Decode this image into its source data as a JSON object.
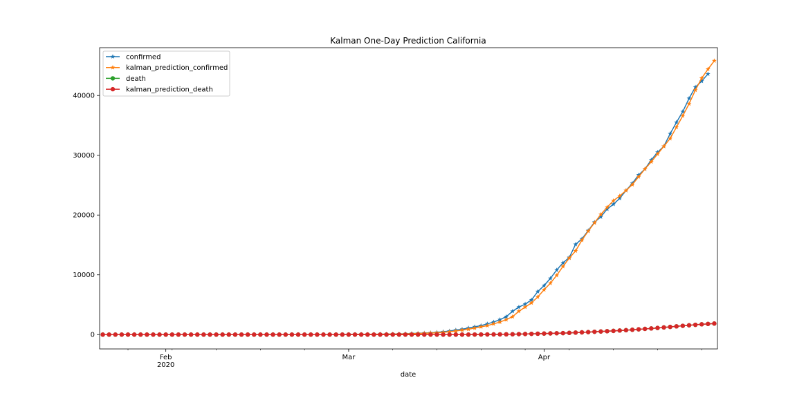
{
  "chart_data": {
    "type": "line",
    "title": "Kalman One-Day Prediction California",
    "xlabel": "date",
    "ylabel": "",
    "x_start": "2020-01-22",
    "x_end": "2020-04-27",
    "ylim": [
      -2400,
      48000
    ],
    "yticks": [
      0,
      10000,
      20000,
      30000,
      40000
    ],
    "xticks_major": [
      {
        "date": "2020-02-01",
        "label": "Feb",
        "sublabel": "2020"
      },
      {
        "date": "2020-03-01",
        "label": "Mar",
        "sublabel": ""
      },
      {
        "date": "2020-04-01",
        "label": "Apr",
        "sublabel": ""
      }
    ],
    "legend_position": "top-left",
    "grid": false,
    "series": [
      {
        "name": "confirmed",
        "color": "#1f77b4",
        "marker": "star",
        "points": [
          [
            "2020-01-22",
            0
          ],
          [
            "2020-02-28",
            0
          ],
          [
            "2020-03-01",
            30
          ],
          [
            "2020-03-05",
            60
          ],
          [
            "2020-03-08",
            90
          ],
          [
            "2020-03-10",
            150
          ],
          [
            "2020-03-12",
            220
          ],
          [
            "2020-03-14",
            300
          ],
          [
            "2020-03-15",
            380
          ],
          [
            "2020-03-16",
            480
          ],
          [
            "2020-03-17",
            600
          ],
          [
            "2020-03-18",
            750
          ],
          [
            "2020-03-19",
            900
          ],
          [
            "2020-03-20",
            1100
          ],
          [
            "2020-03-21",
            1300
          ],
          [
            "2020-03-22",
            1500
          ],
          [
            "2020-03-23",
            1800
          ],
          [
            "2020-03-24",
            2100
          ],
          [
            "2020-03-25",
            2500
          ],
          [
            "2020-03-26",
            3000
          ],
          [
            "2020-03-27",
            3900
          ],
          [
            "2020-03-28",
            4600
          ],
          [
            "2020-03-29",
            5100
          ],
          [
            "2020-03-30",
            5800
          ],
          [
            "2020-03-31",
            7200
          ],
          [
            "2020-04-01",
            8200
          ],
          [
            "2020-04-02",
            9400
          ],
          [
            "2020-04-03",
            10800
          ],
          [
            "2020-04-04",
            12000
          ],
          [
            "2020-04-05",
            12900
          ],
          [
            "2020-04-06",
            15100
          ],
          [
            "2020-04-07",
            16000
          ],
          [
            "2020-04-08",
            17400
          ],
          [
            "2020-04-09",
            18800
          ],
          [
            "2020-04-10",
            19700
          ],
          [
            "2020-04-11",
            21000
          ],
          [
            "2020-04-12",
            21800
          ],
          [
            "2020-04-13",
            22800
          ],
          [
            "2020-04-14",
            24100
          ],
          [
            "2020-04-15",
            25300
          ],
          [
            "2020-04-16",
            26700
          ],
          [
            "2020-04-17",
            27700
          ],
          [
            "2020-04-18",
            29200
          ],
          [
            "2020-04-19",
            30500
          ],
          [
            "2020-04-20",
            31500
          ],
          [
            "2020-04-21",
            33600
          ],
          [
            "2020-04-22",
            35500
          ],
          [
            "2020-04-23",
            37300
          ],
          [
            "2020-04-24",
            39500
          ],
          [
            "2020-04-25",
            41400
          ],
          [
            "2020-04-26",
            42400
          ],
          [
            "2020-04-27",
            43600
          ]
        ]
      },
      {
        "name": "kalman_prediction_confirmed",
        "color": "#ff7f0e",
        "marker": "star",
        "points": [
          [
            "2020-01-22",
            0
          ],
          [
            "2020-02-29",
            0
          ],
          [
            "2020-03-02",
            30
          ],
          [
            "2020-03-06",
            60
          ],
          [
            "2020-03-09",
            90
          ],
          [
            "2020-03-11",
            150
          ],
          [
            "2020-03-13",
            220
          ],
          [
            "2020-03-15",
            300
          ],
          [
            "2020-03-16",
            380
          ],
          [
            "2020-03-17",
            480
          ],
          [
            "2020-03-18",
            600
          ],
          [
            "2020-03-19",
            750
          ],
          [
            "2020-03-20",
            900
          ],
          [
            "2020-03-21",
            1100
          ],
          [
            "2020-03-22",
            1300
          ],
          [
            "2020-03-23",
            1500
          ],
          [
            "2020-03-24",
            1800
          ],
          [
            "2020-03-25",
            2100
          ],
          [
            "2020-03-26",
            2500
          ],
          [
            "2020-03-27",
            3000
          ],
          [
            "2020-03-28",
            3900
          ],
          [
            "2020-03-29",
            4600
          ],
          [
            "2020-03-30",
            5300
          ],
          [
            "2020-03-31",
            6300
          ],
          [
            "2020-04-01",
            7500
          ],
          [
            "2020-04-02",
            8600
          ],
          [
            "2020-04-03",
            9900
          ],
          [
            "2020-04-04",
            11400
          ],
          [
            "2020-04-05",
            12800
          ],
          [
            "2020-04-06",
            14000
          ],
          [
            "2020-04-07",
            15800
          ],
          [
            "2020-04-08",
            17300
          ],
          [
            "2020-04-09",
            18700
          ],
          [
            "2020-04-10",
            20100
          ],
          [
            "2020-04-11",
            21300
          ],
          [
            "2020-04-12",
            22400
          ],
          [
            "2020-04-13",
            23200
          ],
          [
            "2020-04-14",
            24100
          ],
          [
            "2020-04-15",
            25100
          ],
          [
            "2020-04-16",
            26400
          ],
          [
            "2020-04-17",
            27700
          ],
          [
            "2020-04-18",
            28900
          ],
          [
            "2020-04-19",
            30200
          ],
          [
            "2020-04-20",
            31500
          ],
          [
            "2020-04-21",
            32800
          ],
          [
            "2020-04-22",
            34700
          ],
          [
            "2020-04-23",
            36600
          ],
          [
            "2020-04-24",
            38600
          ],
          [
            "2020-04-25",
            40900
          ],
          [
            "2020-04-26",
            42900
          ],
          [
            "2020-04-27",
            44400
          ],
          [
            "2020-04-28",
            45800
          ]
        ]
      },
      {
        "name": "death",
        "color": "#2ca02c",
        "marker": "circle",
        "points": [
          [
            "2020-01-22",
            0
          ],
          [
            "2020-03-20",
            0
          ],
          [
            "2020-03-24",
            30
          ],
          [
            "2020-03-27",
            60
          ],
          [
            "2020-03-29",
            100
          ],
          [
            "2020-03-31",
            150
          ],
          [
            "2020-04-02",
            200
          ],
          [
            "2020-04-04",
            250
          ],
          [
            "2020-04-06",
            330
          ],
          [
            "2020-04-08",
            420
          ],
          [
            "2020-04-10",
            520
          ],
          [
            "2020-04-12",
            620
          ],
          [
            "2020-04-14",
            740
          ],
          [
            "2020-04-16",
            880
          ],
          [
            "2020-04-18",
            1030
          ],
          [
            "2020-04-20",
            1200
          ],
          [
            "2020-04-22",
            1380
          ],
          [
            "2020-04-24",
            1560
          ],
          [
            "2020-04-26",
            1720
          ],
          [
            "2020-04-28",
            1850
          ]
        ]
      },
      {
        "name": "kalman_prediction_death",
        "color": "#d62728",
        "marker": "circle",
        "points": [
          [
            "2020-01-22",
            0
          ],
          [
            "2020-03-20",
            0
          ],
          [
            "2020-03-24",
            30
          ],
          [
            "2020-03-27",
            60
          ],
          [
            "2020-03-29",
            100
          ],
          [
            "2020-03-31",
            150
          ],
          [
            "2020-04-02",
            200
          ],
          [
            "2020-04-04",
            250
          ],
          [
            "2020-04-06",
            330
          ],
          [
            "2020-04-08",
            420
          ],
          [
            "2020-04-10",
            520
          ],
          [
            "2020-04-12",
            620
          ],
          [
            "2020-04-14",
            740
          ],
          [
            "2020-04-16",
            880
          ],
          [
            "2020-04-18",
            1030
          ],
          [
            "2020-04-20",
            1200
          ],
          [
            "2020-04-22",
            1380
          ],
          [
            "2020-04-24",
            1560
          ],
          [
            "2020-04-26",
            1720
          ],
          [
            "2020-04-28",
            1850
          ]
        ]
      }
    ]
  }
}
